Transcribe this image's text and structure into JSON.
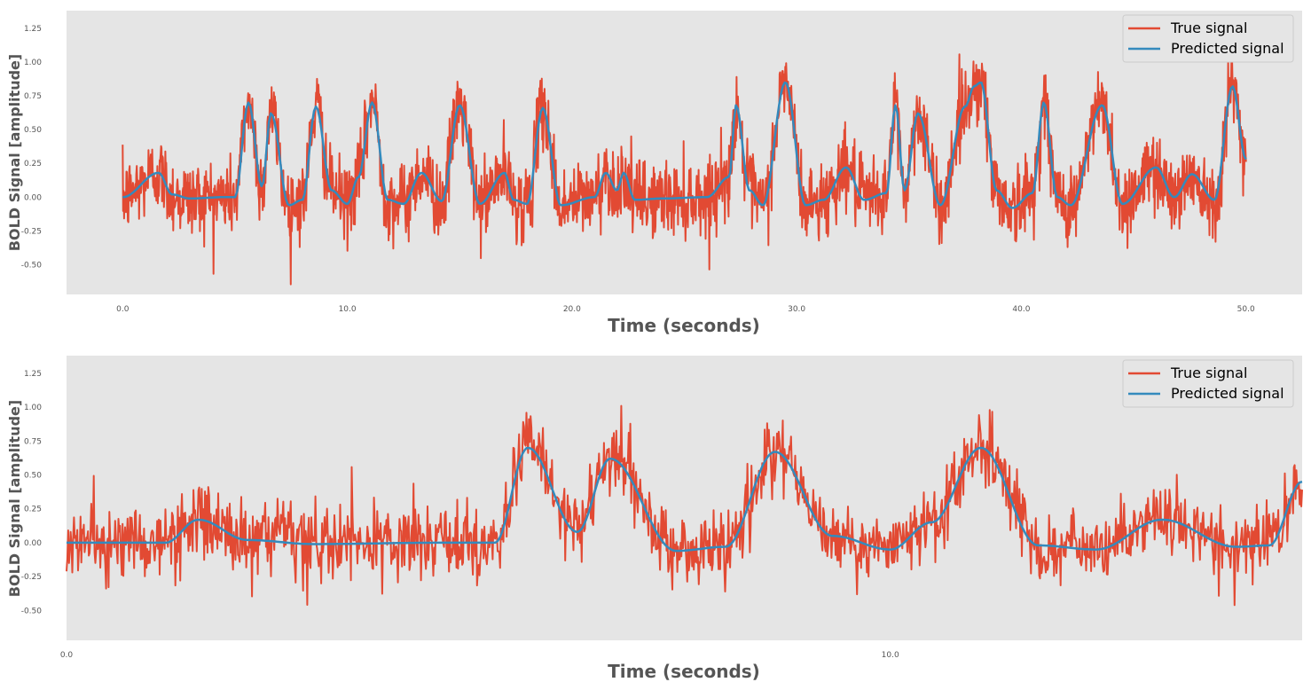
{
  "colors": {
    "true_signal": "#e24a33",
    "predicted_signal": "#348abd",
    "panel_bg": "#e5e5e5"
  },
  "chart_data": [
    {
      "type": "line",
      "xlabel": "Time (seconds)",
      "ylabel": "BOLD Signal [amplitude]",
      "xlim": [
        -2.5,
        52.5
      ],
      "ylim": [
        -0.72,
        1.38
      ],
      "x_ticks": [
        "0.0",
        "10.0",
        "20.0",
        "30.0",
        "40.0",
        "50.0"
      ],
      "y_ticks": [
        "-0.50",
        "-0.25",
        "0.00",
        "0.25",
        "0.50",
        "0.75",
        "1.00",
        "1.25"
      ],
      "grid": false,
      "legend": "top-right",
      "series": [
        {
          "name": "True signal",
          "x": [
            0,
            50
          ],
          "noise_std": 0.14
        },
        {
          "name": "Predicted signal",
          "x": [
            0.0,
            1.6,
            2.2,
            3.0,
            4.5,
            5.0,
            5.6,
            6.2,
            6.6,
            7.4,
            8.0,
            8.6,
            9.3,
            10.0,
            10.5,
            11.1,
            11.8,
            12.5,
            13.3,
            14.2,
            15.0,
            15.9,
            17.0,
            17.4,
            18.0,
            18.7,
            19.5,
            21.0,
            21.5,
            22.0,
            22.3,
            22.8,
            24.0,
            26.0,
            27.0,
            27.3,
            27.9,
            28.5,
            29.5,
            30.4,
            31.2,
            32.2,
            33.0,
            34.0,
            34.4,
            34.8,
            35.4,
            36.4,
            37.5,
            37.9,
            38.2,
            38.9,
            39.6,
            40.5,
            41.0,
            41.6,
            42.2,
            43.6,
            44.5,
            46.0,
            46.8,
            47.6,
            48.6,
            49.4,
            50.0
          ],
          "y": [
            0.0,
            0.18,
            0.02,
            -0.01,
            0.0,
            0.0,
            0.7,
            0.08,
            0.62,
            -0.06,
            -0.02,
            0.67,
            0.05,
            -0.05,
            0.15,
            0.7,
            -0.02,
            -0.05,
            0.18,
            -0.03,
            0.68,
            -0.05,
            0.18,
            -0.02,
            -0.05,
            0.66,
            -0.06,
            0.0,
            0.18,
            0.05,
            0.18,
            -0.02,
            -0.01,
            0.0,
            0.15,
            0.68,
            0.05,
            -0.06,
            0.85,
            -0.06,
            -0.02,
            0.22,
            -0.02,
            0.03,
            0.68,
            0.05,
            0.62,
            -0.06,
            0.67,
            0.82,
            0.85,
            0.05,
            -0.08,
            0.03,
            0.7,
            0.0,
            -0.06,
            0.68,
            -0.05,
            0.22,
            0.0,
            0.17,
            -0.02,
            0.82,
            0.28
          ]
        }
      ]
    },
    {
      "type": "line",
      "xlabel": "Time (seconds)",
      "ylabel": "BOLD Signal [amplitude]",
      "xlim": [
        0,
        15
      ],
      "ylim": [
        -0.72,
        1.38
      ],
      "x_ticks": [
        "0.0",
        "10.0"
      ],
      "y_ticks": [
        "-0.50",
        "-0.25",
        "0.00",
        "0.25",
        "0.50",
        "0.75",
        "1.00",
        "1.25"
      ],
      "grid": false,
      "legend": "top-right",
      "series": [
        {
          "name": "True signal",
          "x": [
            0,
            15
          ],
          "noise_std": 0.14
        },
        {
          "name": "Predicted signal",
          "x": [
            0.0,
            1.2,
            1.6,
            2.2,
            3.0,
            4.5,
            5.2,
            5.6,
            6.2,
            6.6,
            7.4,
            8.0,
            8.6,
            9.3,
            10.0,
            10.5,
            11.1,
            11.8,
            12.5,
            13.3,
            14.2,
            14.6,
            15.0
          ],
          "y": [
            0.0,
            0.0,
            0.17,
            0.02,
            -0.01,
            0.0,
            0.0,
            0.7,
            0.08,
            0.62,
            -0.06,
            -0.03,
            0.67,
            0.05,
            -0.05,
            0.15,
            0.7,
            -0.02,
            -0.05,
            0.17,
            -0.03,
            -0.02,
            0.45
          ]
        }
      ]
    }
  ]
}
